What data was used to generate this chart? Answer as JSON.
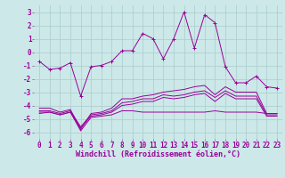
{
  "x": [
    0,
    1,
    2,
    3,
    4,
    5,
    6,
    7,
    8,
    9,
    10,
    11,
    12,
    13,
    14,
    15,
    16,
    17,
    18,
    19,
    20,
    21,
    22,
    23
  ],
  "line1": [
    -0.7,
    -1.3,
    -1.2,
    -0.8,
    -3.3,
    -1.1,
    -1.0,
    -0.7,
    0.1,
    0.1,
    1.4,
    1.0,
    -0.5,
    1.0,
    3.0,
    0.3,
    2.8,
    2.2,
    -1.1,
    -2.3,
    -2.3,
    -1.8,
    -2.6,
    -2.7
  ],
  "line2": [
    -4.2,
    -4.2,
    -4.5,
    -4.3,
    -5.8,
    -4.6,
    -4.5,
    -4.2,
    -3.5,
    -3.5,
    -3.3,
    -3.2,
    -3.0,
    -2.9,
    -2.8,
    -2.6,
    -2.5,
    -3.2,
    -2.6,
    -3.0,
    -3.0,
    -3.0,
    -4.6,
    -4.6
  ],
  "line3": [
    -4.4,
    -4.4,
    -4.6,
    -4.4,
    -5.6,
    -4.7,
    -4.6,
    -4.4,
    -3.8,
    -3.7,
    -3.5,
    -3.5,
    -3.2,
    -3.3,
    -3.2,
    -3.0,
    -2.9,
    -3.4,
    -2.9,
    -3.3,
    -3.3,
    -3.3,
    -4.7,
    -4.7
  ],
  "line4": [
    -4.5,
    -4.5,
    -4.7,
    -4.5,
    -5.7,
    -4.8,
    -4.7,
    -4.5,
    -4.0,
    -3.9,
    -3.7,
    -3.7,
    -3.4,
    -3.5,
    -3.4,
    -3.2,
    -3.1,
    -3.7,
    -3.1,
    -3.5,
    -3.5,
    -3.5,
    -4.8,
    -4.8
  ],
  "line5": [
    -4.6,
    -4.5,
    -4.7,
    -4.5,
    -5.9,
    -4.9,
    -4.8,
    -4.7,
    -4.4,
    -4.4,
    -4.5,
    -4.5,
    -4.5,
    -4.5,
    -4.5,
    -4.5,
    -4.5,
    -4.4,
    -4.5,
    -4.5,
    -4.5,
    -4.5,
    -4.6,
    -4.6
  ],
  "line_color": "#990099",
  "bg_color": "#cce8e8",
  "grid_color": "#aacccc",
  "xlabel": "Windchill (Refroidissement éolien,°C)",
  "ylabel_ticks": [
    3,
    2,
    1,
    0,
    -1,
    -2,
    -3,
    -4,
    -5,
    -6
  ],
  "xlim": [
    -0.5,
    23.5
  ],
  "ylim": [
    -6.5,
    3.5
  ],
  "tick_fontsize": 5.5,
  "xlabel_fontsize": 6.0
}
